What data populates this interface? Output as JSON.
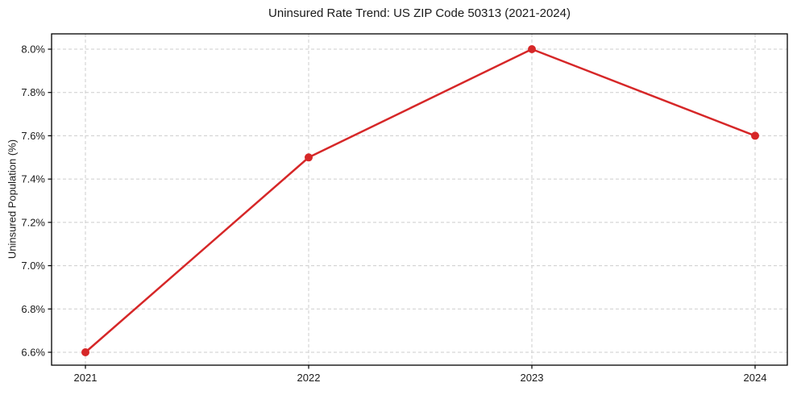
{
  "chart_data": {
    "type": "line",
    "title": "Uninsured Rate Trend: US ZIP Code 50313 (2021-2024)",
    "xlabel": "",
    "ylabel": "Uninsured Population (%)",
    "x": [
      2021,
      2022,
      2023,
      2024
    ],
    "values": [
      6.6,
      7.5,
      8.0,
      7.6
    ],
    "xtick_labels": [
      "2021",
      "2022",
      "2023",
      "2024"
    ],
    "yticks": [
      6.6,
      6.8,
      7.0,
      7.2,
      7.4,
      7.6,
      7.8,
      8.0
    ],
    "ytick_labels": [
      "6.6%",
      "6.8%",
      "7.0%",
      "7.2%",
      "7.4%",
      "7.6%",
      "7.8%",
      "8.0%"
    ],
    "ylim": [
      6.54,
      8.07
    ],
    "xlim": [
      2020.85,
      2024.14
    ],
    "grid": true,
    "grid_style": "dashed",
    "legend": "none",
    "marker": "circle",
    "line_color": "#d62728",
    "grid_color": "#cdcdcd",
    "frame_color": "#000000",
    "text_color": "#1a1a1a",
    "background": "#ffffff"
  }
}
